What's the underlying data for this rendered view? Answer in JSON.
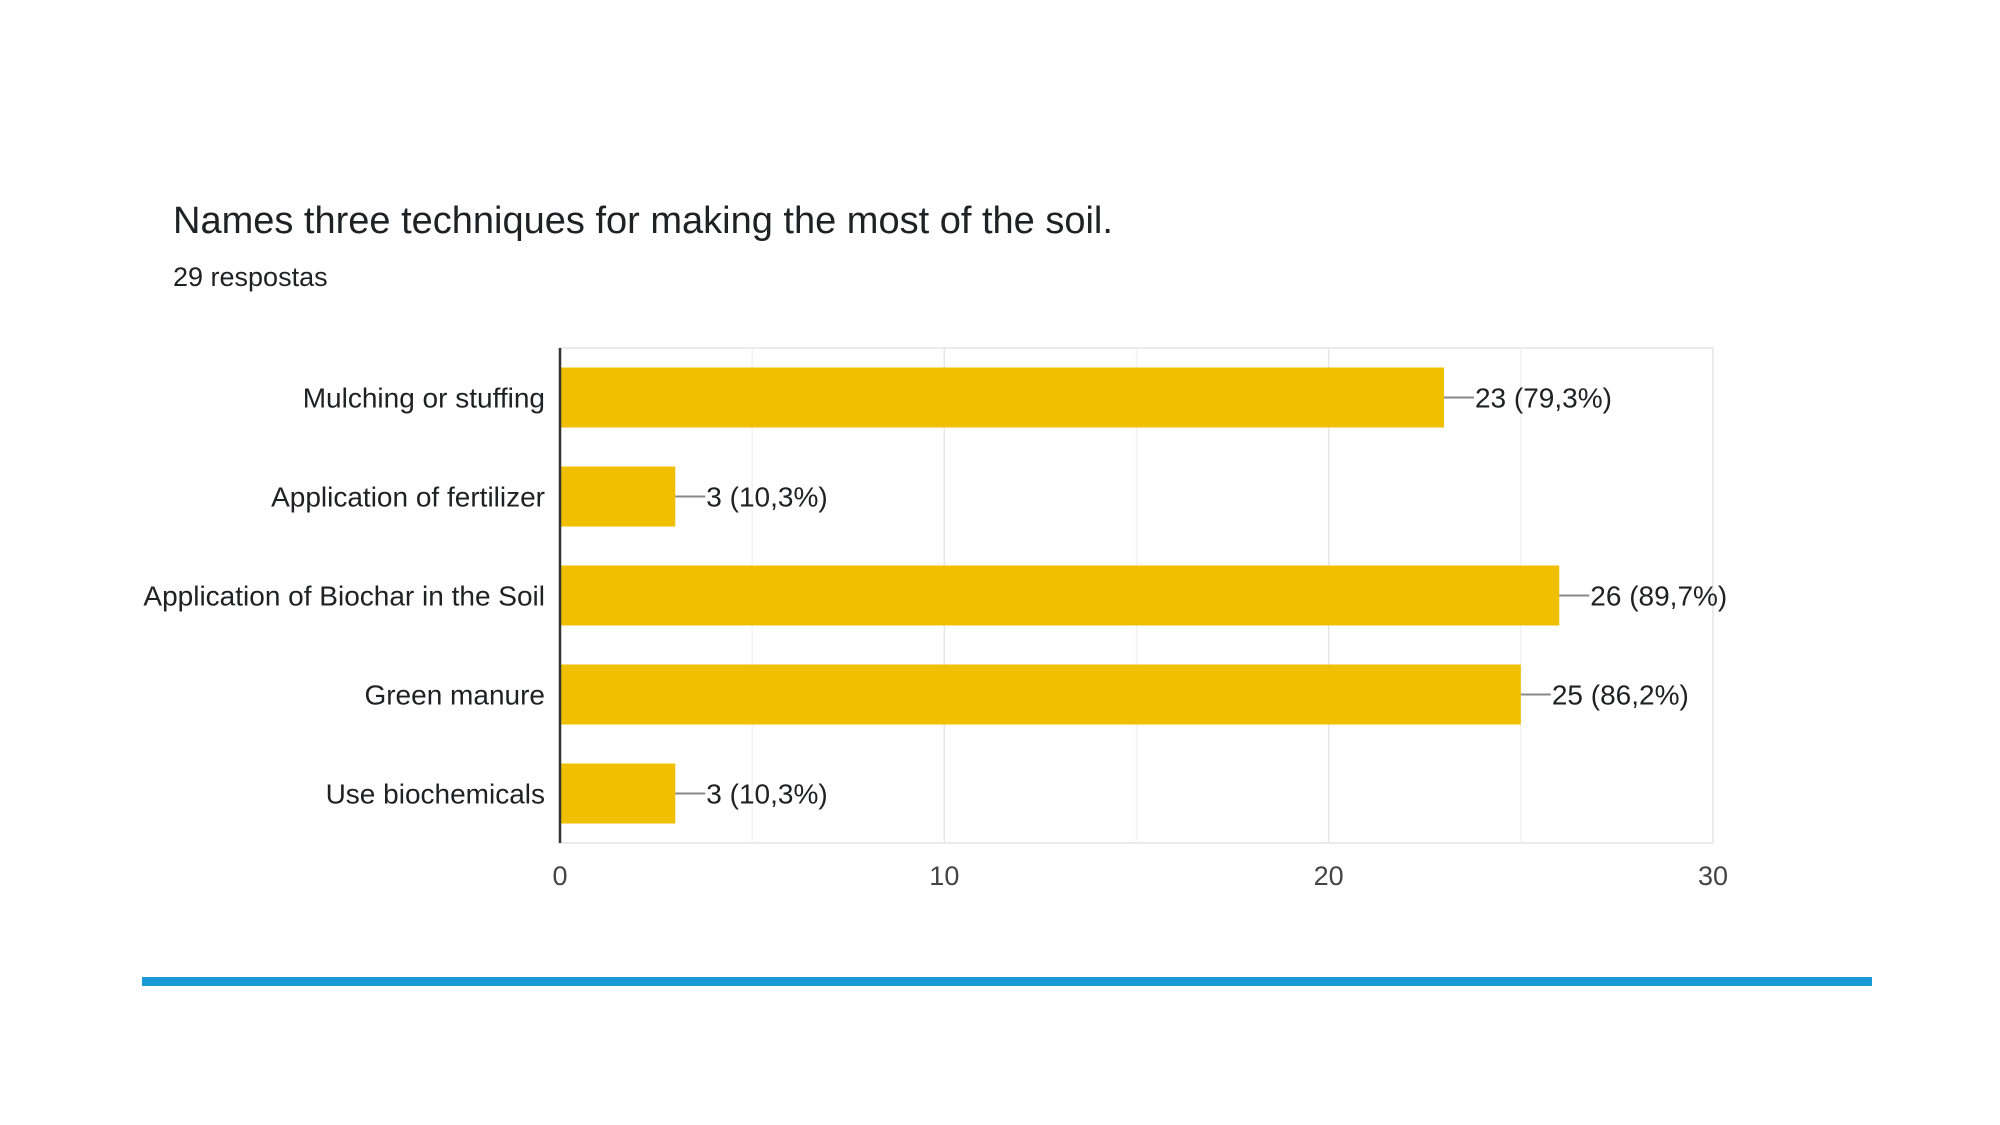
{
  "question": {
    "title": "Names three techniques for making the most of the soil.",
    "responses": "29 respostas"
  },
  "colors": {
    "bar": "#f0c000",
    "accent_rule": "#1a9bd7",
    "grid": "#ebebeb",
    "axis": "#333333",
    "text": "#202124"
  },
  "chart_data": {
    "type": "bar",
    "orientation": "horizontal",
    "title": "",
    "xlabel": "",
    "ylabel": "",
    "categories": [
      "Mulching or stuffing",
      "Application of fertilizer",
      "Application of Biochar in the Soil",
      "Green manure",
      "Use biochemicals"
    ],
    "values": [
      23,
      3,
      26,
      25,
      3
    ],
    "data_labels": [
      "23 (79,3%)",
      "3 (10,3%)",
      "26 (89,7%)",
      "25 (86,2%)",
      "3 (10,3%)"
    ],
    "xlim": [
      0,
      30
    ],
    "x_ticks": [
      0,
      10,
      20,
      30
    ],
    "x_tick_labels": [
      "0",
      "10",
      "20",
      "30"
    ],
    "grid": true
  }
}
